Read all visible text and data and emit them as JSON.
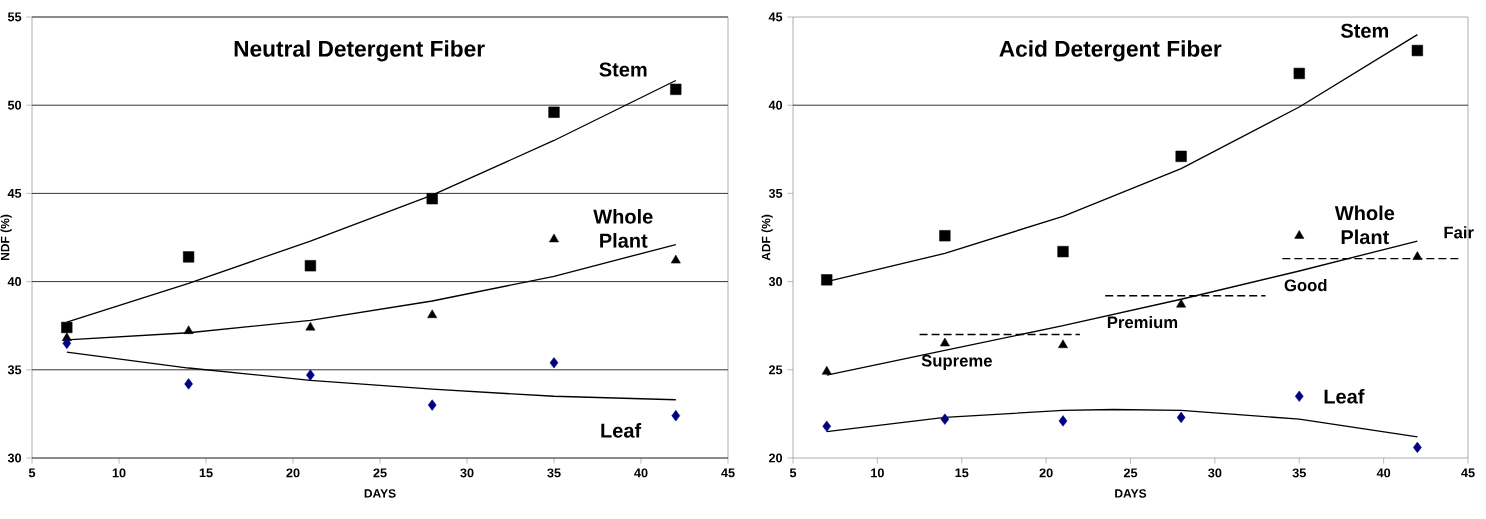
{
  "chart_data": [
    {
      "type": "scatter",
      "title": "Neutral Detergent Fiber",
      "xlabel": "DAYS",
      "ylabel": "NDF (%)",
      "xlim": [
        5,
        45
      ],
      "xticks": [
        5,
        10,
        15,
        20,
        25,
        30,
        35,
        40,
        45
      ],
      "ylim": [
        30,
        55
      ],
      "yticks": [
        30,
        35,
        40,
        45,
        50,
        55
      ],
      "grid": "y",
      "series": [
        {
          "name": "Stem",
          "color": "#000000",
          "marker": "square",
          "x": [
            7,
            14,
            21,
            28,
            35,
            42
          ],
          "values": [
            37.4,
            41.4,
            40.9,
            44.7,
            49.6,
            50.9
          ]
        },
        {
          "name": "Whole Plant",
          "color": "#000000",
          "marker": "triangle",
          "x": [
            7,
            14,
            21,
            28,
            35,
            42
          ],
          "values": [
            36.8,
            37.2,
            37.4,
            38.1,
            42.4,
            41.2
          ]
        },
        {
          "name": "Leaf",
          "color": "#000080",
          "marker": "diamond",
          "x": [
            7,
            14,
            21,
            28,
            35,
            42
          ],
          "values": [
            36.5,
            34.2,
            34.7,
            33.0,
            35.4,
            32.4
          ]
        },
        {
          "type": "line",
          "color": "#000000",
          "marker": "none",
          "x": [
            7,
            14,
            21,
            28,
            35,
            42
          ],
          "values": [
            37.7,
            39.9,
            42.3,
            44.9,
            48.0,
            51.4
          ]
        },
        {
          "type": "line",
          "color": "#000000",
          "marker": "none",
          "x": [
            7,
            14,
            21,
            28,
            35,
            42
          ],
          "values": [
            36.7,
            37.1,
            37.8,
            38.9,
            40.3,
            42.1
          ]
        },
        {
          "type": "line",
          "color": "#000000",
          "marker": "none",
          "x": [
            7,
            14,
            21,
            28,
            35,
            42
          ],
          "values": [
            36.0,
            35.1,
            34.4,
            33.9,
            33.5,
            33.3
          ]
        }
      ]
    },
    {
      "type": "scatter",
      "title": "Acid Detergent Fiber",
      "xlabel": "DAYS",
      "ylabel": "ADF (%)",
      "xlim": [
        5,
        45
      ],
      "xticks": [
        5,
        10,
        15,
        20,
        25,
        30,
        35,
        40,
        45
      ],
      "ylim": [
        20,
        45
      ],
      "yticks": [
        20,
        25,
        30,
        35,
        40,
        45
      ],
      "ref_lines": [
        {
          "axis": "y",
          "value": 40
        }
      ],
      "series": [
        {
          "name": "Stem",
          "color": "#000000",
          "marker": "square",
          "x": [
            7,
            14,
            21,
            28,
            35,
            42
          ],
          "values": [
            30.1,
            32.6,
            31.7,
            37.1,
            41.8,
            43.1
          ]
        },
        {
          "name": "Whole Plant",
          "color": "#000000",
          "marker": "triangle",
          "x": [
            7,
            14,
            21,
            28,
            35,
            42
          ],
          "values": [
            24.9,
            26.5,
            26.4,
            28.7,
            32.6,
            31.4
          ]
        },
        {
          "name": "Leaf",
          "color": "#000080",
          "marker": "diamond",
          "x": [
            7,
            14,
            21,
            28,
            35,
            42
          ],
          "values": [
            21.8,
            22.2,
            22.1,
            22.3,
            23.5,
            20.6
          ]
        },
        {
          "type": "line",
          "color": "#000000",
          "marker": "none",
          "x": [
            7,
            14,
            21,
            28,
            35,
            42
          ],
          "values": [
            30.0,
            31.6,
            33.7,
            36.4,
            39.9,
            44.0
          ]
        },
        {
          "type": "line",
          "color": "#000000",
          "marker": "none",
          "x": [
            7,
            14,
            21,
            28,
            35,
            42
          ],
          "values": [
            24.7,
            26.1,
            27.5,
            29.0,
            30.6,
            32.3
          ]
        },
        {
          "type": "line",
          "color": "#000000",
          "marker": "none",
          "x": [
            7,
            14,
            21,
            24,
            28,
            35,
            42
          ],
          "values": [
            21.5,
            22.3,
            22.7,
            22.75,
            22.7,
            22.2,
            21.2
          ]
        },
        {
          "type": "line",
          "color": "#000000",
          "marker": "none",
          "line_style": "dashed",
          "x": [
            12.5,
            22
          ],
          "values": [
            27.0,
            27.0
          ]
        },
        {
          "type": "line",
          "color": "#000000",
          "marker": "none",
          "line_style": "dashed",
          "x": [
            23.5,
            33
          ],
          "values": [
            29.2,
            29.2
          ]
        },
        {
          "type": "line",
          "color": "#000000",
          "marker": "none",
          "line_style": "dashed",
          "x": [
            34,
            44.5
          ],
          "values": [
            31.3,
            31.3
          ]
        }
      ],
      "annotations": [
        "Supreme",
        "Premium",
        "Good",
        "Fair"
      ]
    }
  ]
}
